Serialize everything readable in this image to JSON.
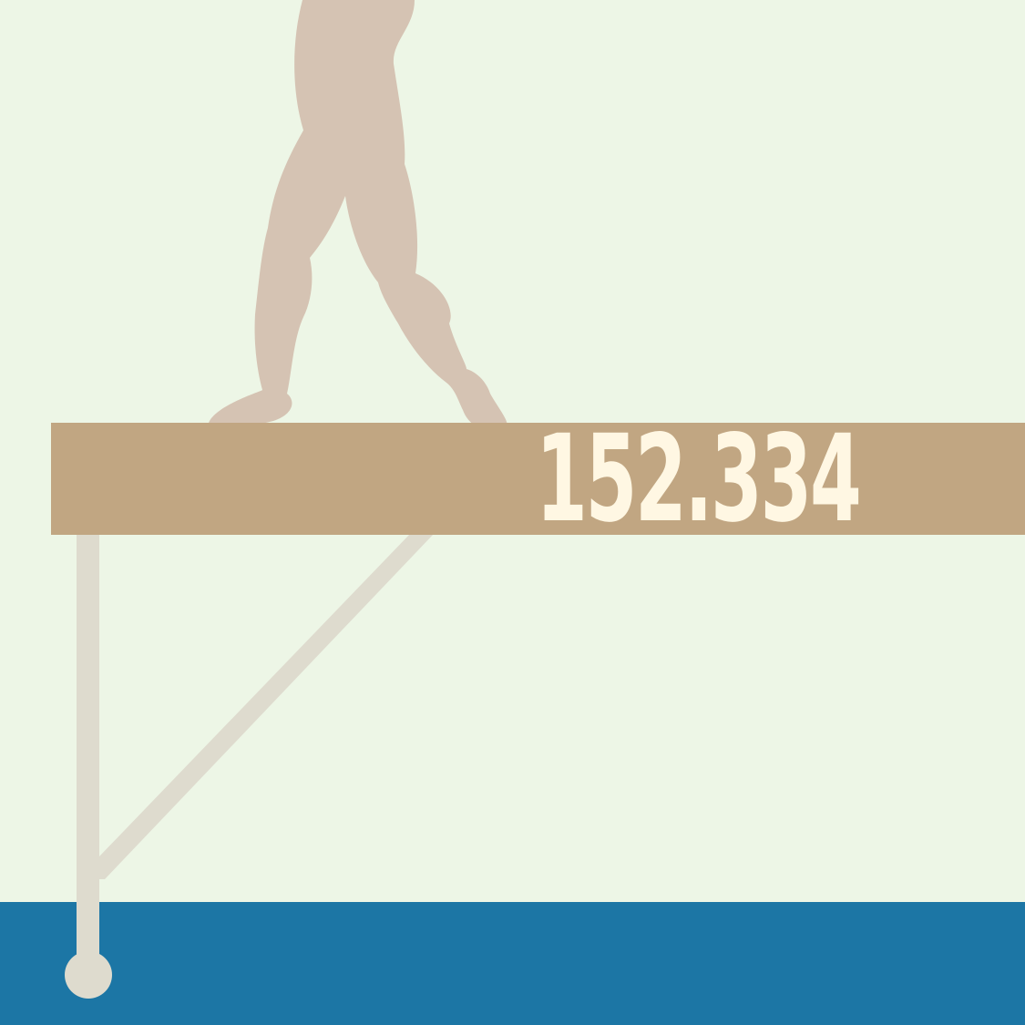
{
  "scene": {
    "score": "152.334",
    "colors": {
      "background": "#EDF6E6",
      "floor": "#1C76A5",
      "beam": "#C1A682",
      "support": "#DEDBCE",
      "legs": "#D5C3B3",
      "score_text": "#FFF7E3"
    },
    "icons": [
      "gymnast-legs-icon",
      "balance-beam-icon"
    ]
  }
}
